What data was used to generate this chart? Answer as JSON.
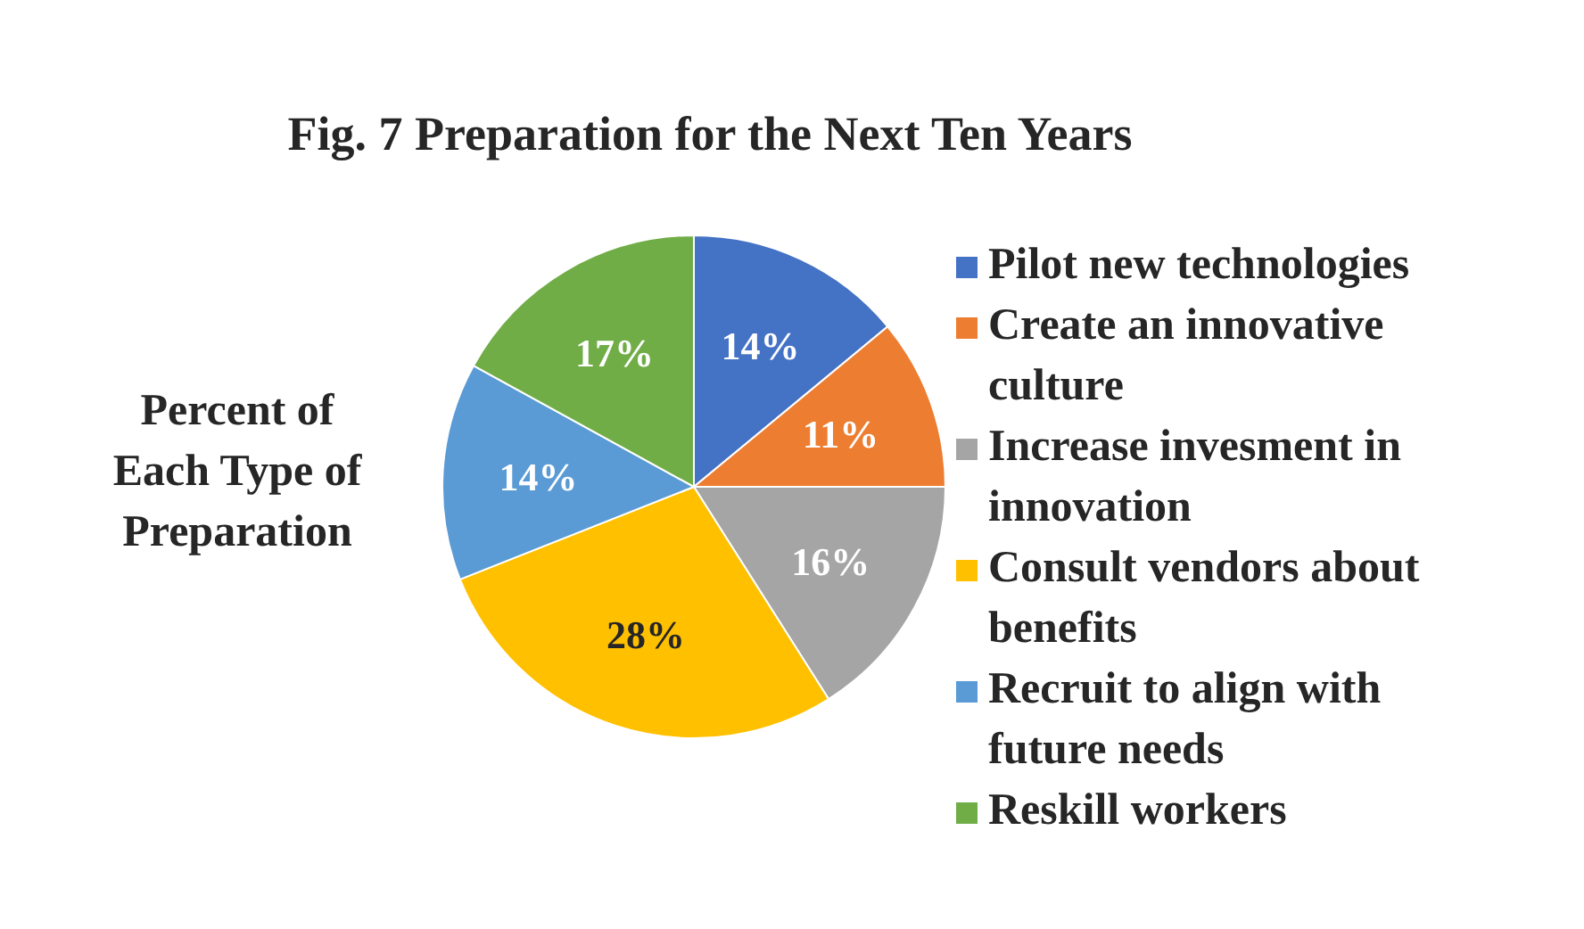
{
  "chart_data": {
    "type": "pie",
    "title": "Fig. 7 Preparation for the Next Ten Years",
    "ylabel": "Percent of Each Type of Preparation",
    "categories": [
      "Pilot new technologies",
      "Create an innovative culture",
      "Increase invesment in innovation",
      "Consult vendors about benefits",
      "Recruit to align with future needs",
      "Reskill workers"
    ],
    "values": [
      14,
      11,
      16,
      28,
      14,
      17
    ],
    "value_labels": [
      "14%",
      "11%",
      "16%",
      "28%",
      "14%",
      "17%"
    ],
    "colors": [
      "#4472c4",
      "#ed7d31",
      "#a5a5a5",
      "#ffc000",
      "#5b9bd5",
      "#70ad47"
    ],
    "legend": "right"
  }
}
